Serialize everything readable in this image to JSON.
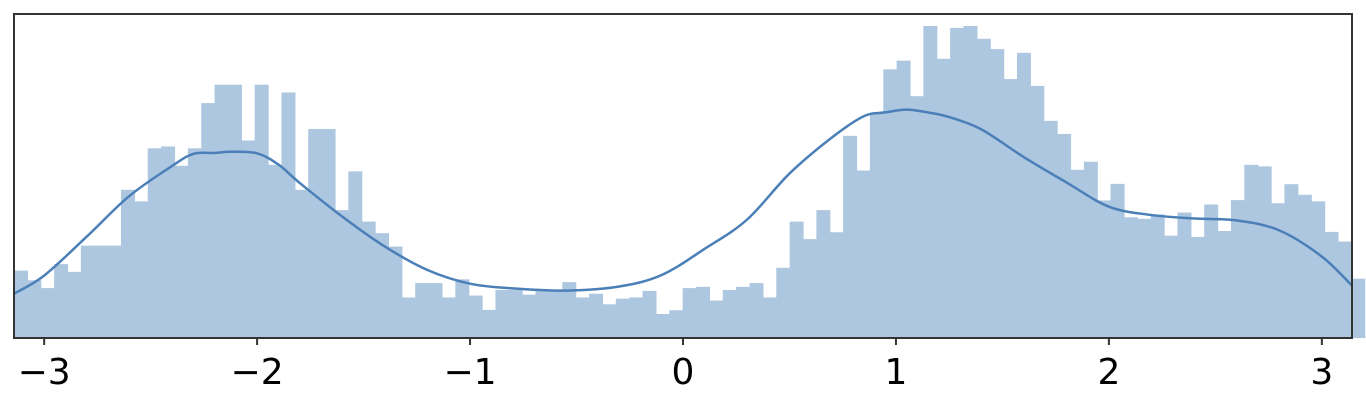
{
  "chart_data": {
    "type": "bar",
    "subtype": "histogram-with-density-curve",
    "title": "",
    "xlabel": "",
    "ylabel": "",
    "xlim": [
      -3.1416,
      3.1416
    ],
    "ylim": [
      0,
      1.0
    ],
    "x_ticks": [
      {
        "value": -3,
        "label": "−3"
      },
      {
        "value": -2,
        "label": "−2"
      },
      {
        "value": -1,
        "label": "−1"
      },
      {
        "value": 0,
        "label": "0"
      },
      {
        "value": 1,
        "label": "1"
      },
      {
        "value": 2,
        "label": "2"
      },
      {
        "value": 3,
        "label": "3"
      }
    ],
    "y_ticks_shown": false,
    "grid": false,
    "legend": "none",
    "colors": {
      "bars": "#aec7e0",
      "curve": "#4a7fb8",
      "frame": "#333333"
    },
    "histogram": {
      "bin_start": -3.1416,
      "bin_width": 0.0628,
      "heights": [
        0.216,
        0.185,
        0.16,
        0.237,
        0.212,
        0.296,
        0.296,
        0.296,
        0.475,
        0.438,
        0.608,
        0.614,
        0.552,
        0.608,
        0.753,
        0.812,
        0.812,
        0.633,
        0.812,
        0.555,
        0.787,
        0.475,
        0.67,
        0.67,
        0.41,
        0.534,
        0.373,
        0.336,
        0.293,
        0.13,
        0.176,
        0.176,
        0.13,
        0.188,
        0.136,
        0.09,
        0.154,
        0.154,
        0.139,
        0.154,
        0.154,
        0.179,
        0.13,
        0.142,
        0.108,
        0.126,
        0.13,
        0.151,
        0.077,
        0.089,
        0.16,
        0.164,
        0.12,
        0.154,
        0.164,
        0.176,
        0.13,
        0.225,
        0.373,
        0.317,
        0.41,
        0.339,
        0.648,
        0.537,
        0.722,
        0.861,
        0.889,
        0.775,
        1.0,
        0.895,
        0.994,
        1.0,
        0.959,
        0.926,
        0.83,
        0.914,
        0.808,
        0.696,
        0.654,
        0.539,
        0.565,
        0.441,
        0.494,
        0.387,
        0.382,
        0.396,
        0.328,
        0.402,
        0.324,
        0.428,
        0.343,
        0.442,
        0.555,
        0.55,
        0.432,
        0.493,
        0.459,
        0.438,
        0.34,
        0.309,
        0.19
      ]
    },
    "density_curve": {
      "x": [
        -3.1416,
        -3.0,
        -2.8,
        -2.6,
        -2.4,
        -2.3,
        -2.2,
        -2.12,
        -2.0,
        -1.9,
        -1.8,
        -1.6,
        -1.4,
        -1.2,
        -1.0,
        -0.8,
        -0.55,
        -0.3,
        -0.1,
        0.1,
        0.3,
        0.5,
        0.7,
        0.85,
        0.95,
        1.05,
        1.15,
        1.25,
        1.4,
        1.6,
        1.8,
        2.0,
        2.2,
        2.4,
        2.6,
        2.8,
        3.0,
        3.1416
      ],
      "y": [
        0.142,
        0.2,
        0.325,
        0.455,
        0.551,
        0.59,
        0.593,
        0.597,
        0.592,
        0.556,
        0.497,
        0.389,
        0.293,
        0.218,
        0.174,
        0.159,
        0.152,
        0.165,
        0.202,
        0.285,
        0.379,
        0.527,
        0.643,
        0.711,
        0.723,
        0.732,
        0.723,
        0.708,
        0.669,
        0.58,
        0.499,
        0.421,
        0.394,
        0.383,
        0.377,
        0.345,
        0.261,
        0.168
      ]
    }
  }
}
